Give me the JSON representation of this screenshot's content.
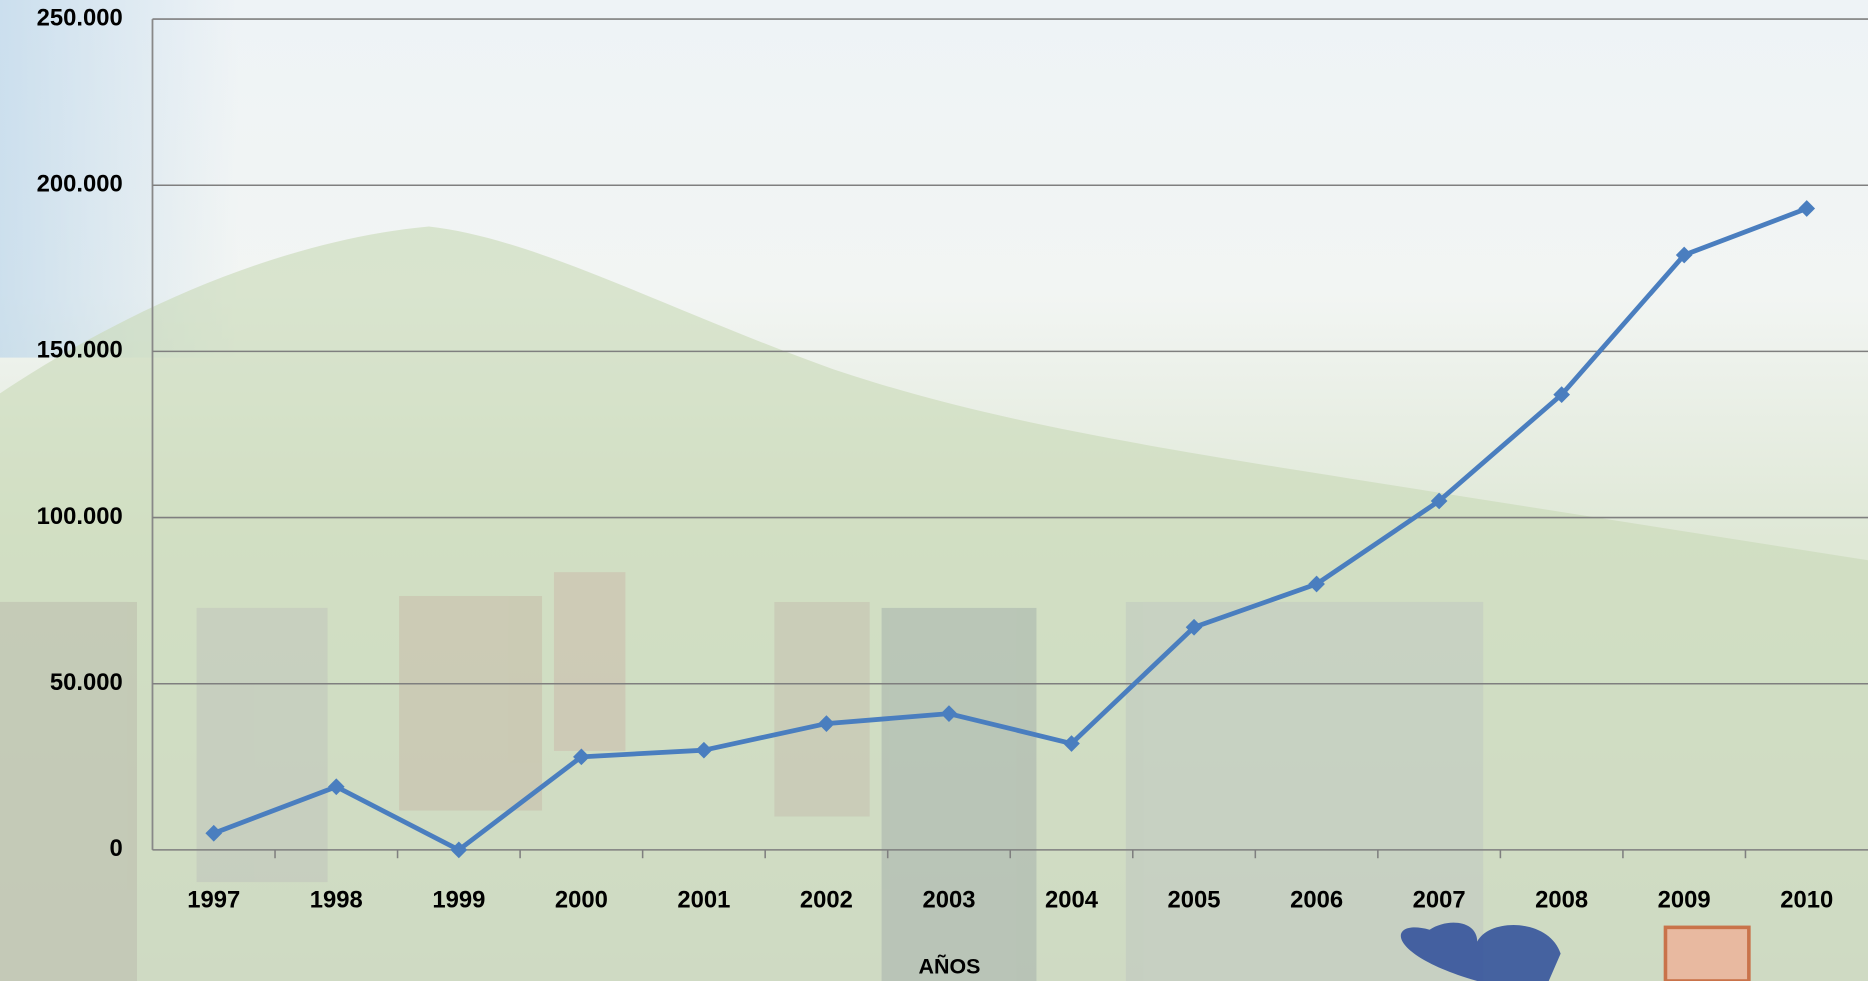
{
  "chart_data": {
    "type": "line",
    "x_label": "AÑOS",
    "categories": [
      "1997",
      "1998",
      "1999",
      "2000",
      "2001",
      "2002",
      "2003",
      "2004",
      "2005",
      "2006",
      "2007",
      "2008",
      "2009",
      "2010"
    ],
    "series": [
      {
        "color": "#4a7ebf",
        "values": [
          5000,
          19000,
          0,
          28000,
          30000,
          38000,
          41000,
          32000,
          67000,
          80000,
          105000,
          137000,
          179000,
          193000
        ]
      }
    ],
    "ylim": [
      0,
      250000
    ],
    "yticks": [
      0,
      {
        "value": 50000,
        "label": "50.000"
      },
      {
        "value": 100000,
        "label": "100.000"
      },
      {
        "value": 150000,
        "label": "150.000"
      },
      {
        "value": 200000,
        "label": "200.000"
      },
      {
        "value": 250000,
        "label": "250.000"
      }
    ],
    "grid": true
  }
}
